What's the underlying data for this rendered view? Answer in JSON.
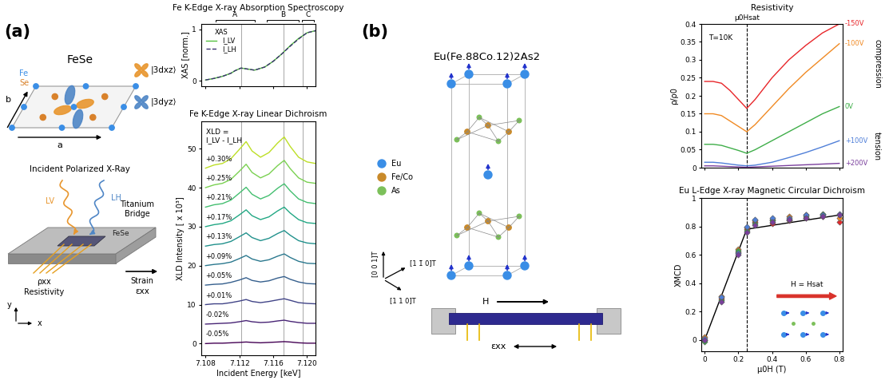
{
  "panels": [
    "(a)",
    "(b)"
  ],
  "diagram_a": {
    "title": "FeSe",
    "axes": [
      "a",
      "b"
    ],
    "atoms": [
      {
        "label": "Fe",
        "color": "#3a8ee6"
      },
      {
        "label": "Se",
        "color": "#d9822b"
      }
    ],
    "orbitals": [
      {
        "label": "|3dxz⟩",
        "color": "#e8962e"
      },
      {
        "label": "|3dyz⟩",
        "color": "#4f86c6"
      }
    ],
    "beam": "Incident Polarized X-Ray",
    "polarizations": [
      {
        "label": "LV",
        "color": "#e8962e"
      },
      {
        "label": "LH",
        "color": "#4f86c6"
      }
    ],
    "sample": "FeSe",
    "bridge": "Titanium\nBridge",
    "strain": "Strain",
    "strain_symbol": "εxx",
    "resistivity_symbol": "ρxx",
    "resistivity": "Resistivity",
    "coords": [
      "y",
      "x"
    ]
  },
  "diagram_b": {
    "formula": "Eu(Fe.88Co.12)2As2",
    "atoms": [
      {
        "label": "Eu",
        "color": "#3a8ee6"
      },
      {
        "label": "Fe/Co",
        "color": "#c98a2a"
      },
      {
        "label": "As",
        "color": "#7cc05a"
      }
    ],
    "directions": [
      "[0 0 1]T",
      "[1 1̄ 0]T",
      "[1 1 0]T"
    ],
    "field": "H",
    "strain_symbol": "εxx"
  },
  "chart_data": [
    {
      "type": "line",
      "title": "Fe K-Edge X-ray Absorption Spectroscopy",
      "ylabel": "XAS [norm.]",
      "annotation": "XAS",
      "legend": "upper left",
      "tick_labels": "y",
      "x": [
        7.108,
        7.109,
        7.11,
        7.111,
        7.1115,
        7.1122,
        7.113,
        7.1138,
        7.115,
        7.116,
        7.117,
        7.118,
        7.119,
        7.12,
        7.121
      ],
      "series": [
        {
          "name": "I_LV",
          "color": "#55c040",
          "line_style": "solid",
          "values": [
            0.02,
            0.05,
            0.09,
            0.15,
            0.2,
            0.25,
            0.23,
            0.21,
            0.27,
            0.38,
            0.52,
            0.68,
            0.82,
            0.93,
            0.97
          ]
        },
        {
          "name": "I_LH",
          "color": "#3b3170",
          "line_style": "dashed",
          "values": [
            0.02,
            0.05,
            0.09,
            0.15,
            0.2,
            0.25,
            0.23,
            0.21,
            0.27,
            0.38,
            0.52,
            0.67,
            0.81,
            0.93,
            0.97
          ]
        }
      ],
      "xlim": [
        7.1075,
        7.121
      ],
      "ylim": [
        -0.1,
        1.1
      ],
      "xticks": [
        7.108,
        7.112,
        7.116,
        {
          "value": 7.12,
          "label": "7.120"
        }
      ],
      "yticks": [
        0,
        1
      ],
      "vlines": [
        7.1122,
        7.1172,
        7.1195
      ],
      "regions": [
        {
          "label": "A",
          "range": [
            7.1092,
            7.1138
          ]
        },
        {
          "label": "B",
          "range": [
            7.1152,
            7.119
          ]
        },
        {
          "label": "C",
          "range": [
            7.1194,
            7.1208
          ]
        }
      ]
    },
    {
      "type": "line",
      "title": "Fe K-Edge X-ray Linear Dichroism",
      "xlabel": "Incident Energy [keV]",
      "ylabel": "XLD Intensity [ x 10³]",
      "annotation": "XLD =\nI_LV - I_LH",
      "x": [
        7.108,
        7.109,
        7.11,
        7.111,
        7.112,
        7.1128,
        7.1135,
        7.1145,
        7.1155,
        7.1165,
        7.1173,
        7.118,
        7.119,
        7.12,
        7.121
      ],
      "series": [
        {
          "name": "+0.30%",
          "color": "#bddf26",
          "values": [
            45,
            45.8,
            46.2,
            47.4,
            49.8,
            51.8,
            49.4,
            47.8,
            49,
            51.4,
            53,
            50.6,
            47.8,
            46.6,
            46.2
          ]
        },
        {
          "name": "+0.25%",
          "color": "#7ad151",
          "values": [
            40,
            40.7,
            41.1,
            42.1,
            44.2,
            46,
            43.9,
            42.5,
            43.5,
            45.6,
            47,
            44.9,
            42.5,
            41.4,
            41.1
          ]
        },
        {
          "name": "+0.21%",
          "color": "#44bf70",
          "values": [
            35,
            35.6,
            35.9,
            36.8,
            38.6,
            40.1,
            38.3,
            37.1,
            38,
            39.8,
            41,
            39.2,
            37.1,
            36.2,
            35.9
          ]
        },
        {
          "name": "+0.17%",
          "color": "#22a884",
          "values": [
            30,
            30.5,
            30.8,
            31.5,
            33,
            34.3,
            32.8,
            31.8,
            32.5,
            34,
            35,
            33.5,
            31.8,
            31,
            30.8
          ]
        },
        {
          "name": "+0.13%",
          "color": "#21918c",
          "values": [
            25,
            25.4,
            25.6,
            26.2,
            27.4,
            28.4,
            27.2,
            26.4,
            27,
            28.2,
            29,
            27.8,
            26.4,
            25.8,
            25.6
          ]
        },
        {
          "name": "+0.09%",
          "color": "#2a788e",
          "values": [
            20,
            20.3,
            20.5,
            20.9,
            21.8,
            22.6,
            21.7,
            21.1,
            21.5,
            22.4,
            23,
            22.1,
            21.1,
            20.6,
            20.5
          ]
        },
        {
          "name": "+0.05%",
          "color": "#355f8d",
          "values": [
            15,
            15.2,
            15.3,
            15.7,
            16.3,
            16.9,
            16.2,
            15.8,
            16.1,
            16.8,
            17.2,
            16.5,
            15.8,
            15.4,
            15.3
          ]
        },
        {
          "name": "+0.01%",
          "color": "#414487",
          "values": [
            10,
            10.2,
            10.2,
            10.5,
            10.9,
            11.3,
            10.8,
            10.5,
            10.8,
            11.2,
            11.5,
            11.1,
            10.5,
            10.3,
            10.2
          ]
        },
        {
          "name": "-0.02%",
          "color": "#482475",
          "values": [
            5,
            5.1,
            5.2,
            5.3,
            5.6,
            5.9,
            5.6,
            5.4,
            5.5,
            5.8,
            6,
            5.7,
            5.4,
            5.2,
            5.2
          ]
        },
        {
          "name": "-0.05%",
          "color": "#440154",
          "values": [
            0,
            0.1,
            0.1,
            0.2,
            0.3,
            0.4,
            0.3,
            0.2,
            0.3,
            0.4,
            0.5,
            0.4,
            0.2,
            0.1,
            0.1
          ]
        }
      ],
      "xlim": [
        7.1075,
        7.121
      ],
      "ylim": [
        -3,
        57
      ],
      "xticks": [
        7.108,
        7.112,
        7.116,
        {
          "value": 7.12,
          "label": "7.120"
        }
      ],
      "yticks": [
        0,
        10,
        20,
        30,
        40,
        50
      ],
      "vlines": [
        7.1122,
        7.1172,
        7.1195
      ]
    },
    {
      "type": "line",
      "title": "Resistivity",
      "ylabel": "ρ/ρ0",
      "tick_labels": "y",
      "annotations": {
        "temperature": "T=10K",
        "compression": "compression",
        "tension": "tension"
      },
      "vline": 0.25,
      "vline_label": "μ0Hsat",
      "x": [
        0,
        0.05,
        0.1,
        0.15,
        0.2,
        0.25,
        0.3,
        0.4,
        0.5,
        0.6,
        0.7,
        0.8
      ],
      "series": [
        {
          "name": "-150V",
          "color": "#e8262a",
          "values": [
            0.24,
            0.24,
            0.235,
            0.215,
            0.19,
            0.165,
            0.19,
            0.25,
            0.3,
            0.34,
            0.375,
            0.4
          ]
        },
        {
          "name": "-100V",
          "color": "#f08a24",
          "values": [
            0.15,
            0.15,
            0.145,
            0.13,
            0.115,
            0.1,
            0.12,
            0.17,
            0.22,
            0.265,
            0.305,
            0.345
          ]
        },
        {
          "name": "0V",
          "color": "#3fae49",
          "values": [
            0.065,
            0.065,
            0.062,
            0.055,
            0.048,
            0.04,
            0.05,
            0.075,
            0.1,
            0.125,
            0.15,
            0.17
          ]
        },
        {
          "name": "+100V",
          "color": "#4f7fd8",
          "values": [
            0.015,
            0.015,
            0.013,
            0.01,
            0.007,
            0.005,
            0.007,
            0.015,
            0.028,
            0.042,
            0.058,
            0.075
          ]
        },
        {
          "name": "+200V",
          "color": "#7a3f9d",
          "values": [
            0.005,
            0.005,
            0.004,
            0.003,
            0.002,
            0.001,
            0.002,
            0.004,
            0.006,
            0.008,
            0.01,
            0.012
          ]
        }
      ],
      "xlim": [
        -0.02,
        0.82
      ],
      "ylim": [
        0,
        0.4
      ],
      "xticks": [
        0,
        0.2,
        0.4,
        0.6,
        0.8
      ],
      "yticks": [
        0,
        0.05,
        0.1,
        0.15,
        0.2,
        0.25,
        0.3,
        0.35,
        0.4
      ]
    },
    {
      "type": "scatter",
      "title": "Eu L-Edge X-ray Magnetic Circular Dichroism",
      "xlabel": "μ0H (T)",
      "ylabel": "XMCD",
      "annotation": "H = Hsat",
      "vline": 0.25,
      "x": [
        0,
        0.1,
        0.2,
        0.25,
        0.3,
        0.4,
        0.5,
        0.6,
        0.7,
        0.8
      ],
      "series": [
        {
          "color": "#e8262a",
          "marker": "diamond",
          "values": [
            0.0,
            0.29,
            0.62,
            0.78,
            0.83,
            0.82,
            0.84,
            0.86,
            0.87,
            0.83
          ]
        },
        {
          "color": "#f08a24",
          "marker": "diamond",
          "values": [
            0.02,
            0.31,
            0.64,
            0.79,
            0.84,
            0.85,
            0.87,
            0.88,
            0.88,
            0.86
          ]
        },
        {
          "color": "#3fae49",
          "marker": "diamond",
          "values": [
            -0.01,
            0.28,
            0.63,
            0.77,
            0.82,
            0.84,
            0.85,
            0.87,
            0.89,
            0.88
          ]
        },
        {
          "color": "#4f7fd8",
          "marker": "diamond",
          "values": [
            0.01,
            0.3,
            0.61,
            0.8,
            0.85,
            0.86,
            0.86,
            0.88,
            0.88,
            0.89
          ]
        },
        {
          "color": "#7a3f9d",
          "marker": "diamond",
          "values": [
            0.0,
            0.27,
            0.6,
            0.76,
            0.81,
            0.83,
            0.85,
            0.86,
            0.87,
            0.88
          ]
        },
        {
          "type": "line",
          "color": "#000000",
          "line_style": "solid",
          "x": [
            0,
            0.25,
            0.8
          ],
          "values": [
            0,
            0.78,
            0.88
          ]
        }
      ],
      "xlim": [
        -0.02,
        0.82
      ],
      "ylim": [
        -0.08,
        1.0
      ],
      "xticks": [
        0,
        0.2,
        0.4,
        0.6,
        0.8
      ],
      "yticks": [
        0,
        0.2,
        0.4,
        0.6,
        0.8,
        1
      ]
    }
  ]
}
